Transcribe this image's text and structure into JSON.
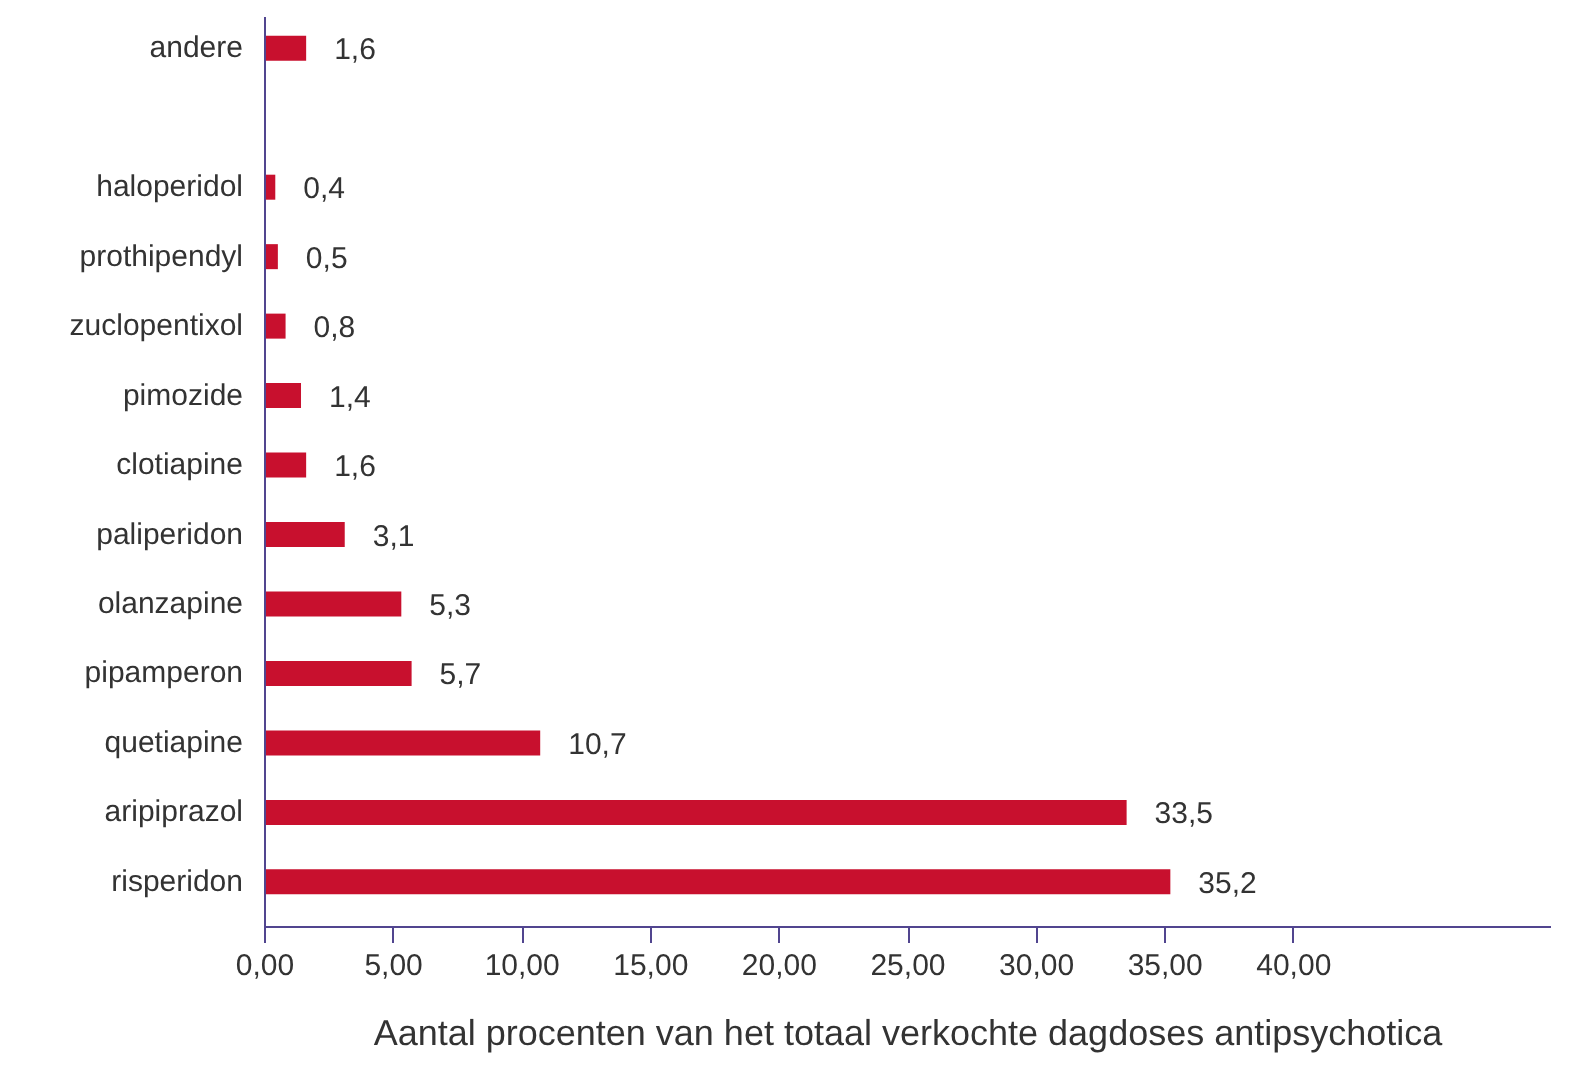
{
  "chart_data": {
    "type": "bar",
    "orientation": "horizontal",
    "xlabel": "Aantal procenten van het totaal verkochte dagdoses antipsychotica",
    "categories": [
      "andere",
      null,
      "haloperidol",
      "prothipendyl",
      "zuclopentixol",
      "pimozide",
      "clotiapine",
      "paliperidon",
      "olanzapine",
      "pipamperon",
      "quetiapine",
      "aripiprazol",
      "risperidon"
    ],
    "values": [
      1.6,
      null,
      0.4,
      0.5,
      0.8,
      1.4,
      1.6,
      3.1,
      5.3,
      5.7,
      10.7,
      33.5,
      35.2
    ],
    "value_labels": [
      "1,6",
      null,
      "0,4",
      "0,5",
      "0,8",
      "1,4",
      "1,6",
      "3,1",
      "5,3",
      "5,7",
      "10,7",
      "33,5",
      "35,2"
    ],
    "color": "#c8102e",
    "xlim": [
      0,
      50
    ],
    "xticks": [
      {
        "value": 0,
        "label": "0,00"
      },
      {
        "value": 5,
        "label": "5,00"
      },
      {
        "value": 10,
        "label": "10,00"
      },
      {
        "value": 15,
        "label": "15,00"
      },
      {
        "value": 20,
        "label": "20,00"
      },
      {
        "value": 25,
        "label": "25,00"
      },
      {
        "value": 30,
        "label": "30,00"
      },
      {
        "value": 35,
        "label": "35,00"
      },
      {
        "value": 40,
        "label": "40,00"
      }
    ],
    "grid": false
  }
}
